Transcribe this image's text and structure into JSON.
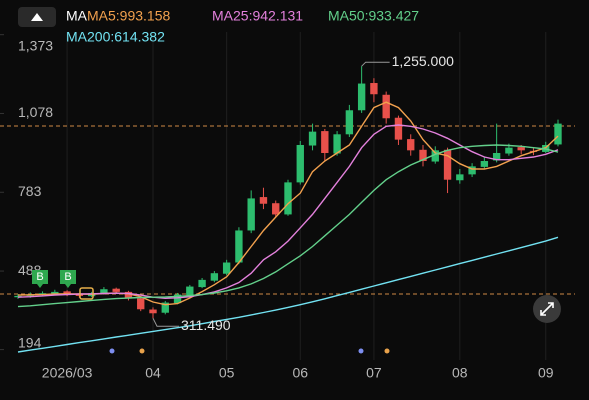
{
  "chart_data": {
    "type": "candlestick",
    "indicator": "MA",
    "categories": [
      null,
      null,
      null,
      null,
      "2026/03",
      null,
      null,
      null,
      null,
      null,
      null,
      "04",
      null,
      null,
      null,
      null,
      null,
      "05",
      null,
      null,
      null,
      null,
      null,
      "06",
      null,
      null,
      null,
      null,
      null,
      "07",
      null,
      null,
      null,
      null,
      null,
      null,
      "08",
      null,
      null,
      null,
      null,
      null,
      null,
      "09",
      null
    ],
    "open": [
      390,
      395,
      402,
      404,
      412,
      402,
      394,
      404,
      422,
      410,
      386,
      344,
      332,
      368,
      398,
      428,
      452,
      478,
      520,
      640,
      765,
      742,
      700,
      820,
      958,
      1012,
      928,
      1000,
      1090,
      1192,
      1148,
      1062,
      982,
      942,
      898,
      942,
      828,
      850,
      878,
      902,
      928,
      952,
      938,
      934,
      962
    ],
    "high": [
      402,
      408,
      412,
      418,
      416,
      406,
      410,
      428,
      426,
      414,
      390,
      352,
      376,
      406,
      436,
      462,
      488,
      530,
      652,
      790,
      800,
      752,
      830,
      975,
      1040,
      1020,
      1012,
      1110,
      1255,
      1210,
      1160,
      1070,
      1000,
      960,
      955,
      950,
      870,
      892,
      915,
      1040,
      965,
      960,
      950,
      972,
      1055
    ],
    "low": [
      384,
      388,
      396,
      398,
      394,
      388,
      390,
      400,
      404,
      378,
      338,
      311.49,
      326,
      364,
      394,
      424,
      446,
      472,
      514,
      630,
      720,
      690,
      695,
      812,
      940,
      900,
      920,
      990,
      1080,
      1120,
      1040,
      960,
      920,
      880,
      890,
      780,
      815,
      840,
      870,
      895,
      920,
      925,
      922,
      930,
      955
    ],
    "close": [
      395,
      400,
      405,
      410,
      400,
      395,
      405,
      420,
      410,
      385,
      345,
      330,
      370,
      400,
      430,
      455,
      480,
      520,
      640,
      760,
      740,
      700,
      820,
      960,
      1010,
      930,
      1000,
      1090,
      1190,
      1150,
      1060,
      980,
      940,
      900,
      940,
      830,
      850,
      880,
      900,
      930,
      950,
      940,
      935,
      960,
      1040
    ],
    "up_color": "#2dbd6e",
    "down_color": "#e8514b",
    "series": [
      {
        "name": "MA5:993.158",
        "color": "#f2a14e",
        "values": [
          398,
          399,
          400,
          402,
          403,
          402,
          401,
          404,
          406,
          403,
          392,
          372,
          362,
          366,
          387,
          411,
          437,
          466,
          520,
          580,
          640,
          690,
          740,
          780,
          860,
          900,
          930,
          960,
          1030,
          1100,
          1120,
          1100,
          1050,
          980,
          930,
          920,
          890,
          870,
          870,
          880,
          900,
          920,
          935,
          950,
          993.158
        ]
      },
      {
        "name": "MA25:942.131",
        "color": "#e381dc",
        "values": [
          390,
          392,
          395,
          398,
          400,
          402,
          403,
          404,
          405,
          404,
          398,
          390,
          386,
          388,
          392,
          400,
          410,
          425,
          445,
          480,
          530,
          560,
          600,
          650,
          700,
          760,
          820,
          880,
          950,
          1000,
          1030,
          1035,
          1030,
          1020,
          1005,
          985,
          960,
          935,
          915,
          905,
          905,
          910,
          915,
          925,
          942.131
        ]
      },
      {
        "name": "MA50:933.427",
        "color": "#63d08b",
        "values": [
          355,
          358,
          362,
          366,
          370,
          374,
          378,
          382,
          385,
          387,
          389,
          390,
          391,
          393,
          396,
          400,
          406,
          414,
          425,
          440,
          460,
          485,
          515,
          545,
          580,
          620,
          660,
          700,
          745,
          790,
          830,
          860,
          885,
          905,
          925,
          940,
          950,
          955,
          958,
          960,
          958,
          955,
          950,
          945,
          933.427
        ]
      },
      {
        "name": "MA200:614.382",
        "color": "#72e2f2",
        "values": [
          185,
          192,
          199,
          206,
          213,
          220,
          227,
          234,
          241,
          248,
          255,
          262,
          269,
          276,
          283,
          291,
          299,
          307,
          315,
          324,
          333,
          342,
          352,
          362,
          373,
          384,
          396,
          408,
          420,
          432,
          444,
          456,
          468,
          480,
          492,
          504,
          516,
          528,
          540,
          552,
          564,
          576,
          588,
          600,
          614.382
        ]
      }
    ],
    "high_label": "1,255.000",
    "low_label": "311.490",
    "reference_lines": [
      1031,
      402
    ],
    "reference_color": "#f2a14e",
    "ylim": [
      170,
      1383
    ],
    "yticks": [
      194,
      488,
      783,
      {
        "value": 1078,
        "label": "1,078"
      },
      {
        "value": 1373,
        "label": "1,373"
      }
    ],
    "xgrid": true
  }
}
